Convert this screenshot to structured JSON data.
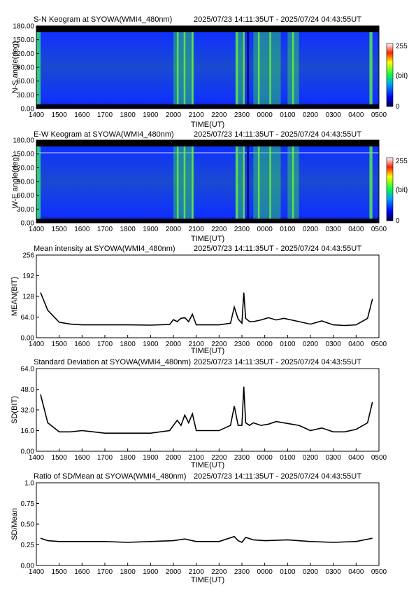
{
  "time_range": "2025/07/23 14:11:35UT - 2025/07/24 04:43:55UT",
  "time_ticks": [
    "1400",
    "1500",
    "1600",
    "1700",
    "1800",
    "1900",
    "2000",
    "2100",
    "2200",
    "2300",
    "0000",
    "0100",
    "0200",
    "0300",
    "0400",
    "0500"
  ],
  "xlabel": "TIME(UT)",
  "colorbar": {
    "max_label": "255",
    "mid_label": "(bit)",
    "min_label": "0"
  },
  "chart_data": [
    {
      "type": "heatmap",
      "title": "S-N Keogram at SYOWA(WMI4_480nm)",
      "ylabel": "N-S angle(deg)",
      "ylim": [
        0,
        180
      ],
      "yticks": [
        "0.00",
        "30.00",
        "60.00",
        "90.00",
        "120.00",
        "150.00",
        "180.00"
      ],
      "bright_bands_ut": [
        [
          20.0,
          20.9
        ],
        [
          22.7,
          23.1
        ],
        [
          23.5,
          24.7
        ],
        [
          1.0,
          1.5
        ]
      ],
      "value_range": [
        0,
        255
      ]
    },
    {
      "type": "heatmap",
      "title": "E-W Keogram at SYOWA(WMI4_480nm)",
      "ylabel": "W-E angle(deg)",
      "ylim": [
        0,
        180
      ],
      "yticks": [
        "0.00",
        "30.00",
        "60.00",
        "90.00",
        "120.00",
        "150.00",
        "180.00"
      ],
      "bright_bands_ut": [
        [
          20.0,
          20.9
        ],
        [
          22.7,
          23.1
        ],
        [
          23.5,
          24.7
        ],
        [
          1.0,
          1.5
        ]
      ],
      "value_range": [
        0,
        255
      ]
    },
    {
      "type": "line",
      "title": "Mean intensity at SYOWA(WMI4_480nm)",
      "ylabel": "MEAN(BIT)",
      "ylim": [
        0,
        256
      ],
      "yticks": [
        "0.00",
        "64.0",
        "128",
        "192",
        "256"
      ],
      "x": [
        "1411",
        "1430",
        "1500",
        "1530",
        "1600",
        "1700",
        "1800",
        "1900",
        "1950",
        "2000",
        "2010",
        "2020",
        "2030",
        "2040",
        "2050",
        "2100",
        "2130",
        "2200",
        "2230",
        "2240",
        "2250",
        "2300",
        "2305",
        "2310",
        "2320",
        "2330",
        "2350",
        "0010",
        "0030",
        "0050",
        "0110",
        "0130",
        "0200",
        "0230",
        "0300",
        "0330",
        "0400",
        "0430",
        "0443"
      ],
      "values": [
        140,
        85,
        48,
        42,
        40,
        40,
        40,
        39,
        41,
        56,
        50,
        60,
        62,
        50,
        73,
        40,
        40,
        40,
        45,
        95,
        58,
        45,
        140,
        60,
        50,
        50,
        55,
        62,
        55,
        60,
        55,
        50,
        42,
        52,
        40,
        38,
        40,
        60,
        120
      ]
    },
    {
      "type": "line",
      "title": "Standard Deviation at SYOWA(WMI4_480nm)",
      "ylabel": "SD(BIT)",
      "ylim": [
        0,
        64
      ],
      "yticks": [
        "0.00",
        "16.0",
        "32.0",
        "48.0",
        "64.0"
      ],
      "x": [
        "1411",
        "1430",
        "1500",
        "1530",
        "1600",
        "1700",
        "1800",
        "1900",
        "1950",
        "2000",
        "2010",
        "2020",
        "2030",
        "2040",
        "2050",
        "2100",
        "2130",
        "2200",
        "2230",
        "2240",
        "2250",
        "2300",
        "2305",
        "2310",
        "2320",
        "2330",
        "2350",
        "0010",
        "0030",
        "0050",
        "0110",
        "0130",
        "0200",
        "0230",
        "0300",
        "0330",
        "0400",
        "0430",
        "0443"
      ],
      "values": [
        44,
        22,
        15,
        15,
        16,
        14,
        14,
        14,
        16,
        20,
        24,
        20,
        28,
        22,
        29,
        16,
        16,
        16,
        20,
        35,
        20,
        20,
        50,
        22,
        20,
        22,
        20,
        21,
        23,
        22,
        21,
        20,
        16,
        18,
        15,
        15,
        17,
        22,
        38
      ]
    },
    {
      "type": "line",
      "title": "Ratio of SD/Mean at SYOWA(WMI4_480nm)",
      "ylabel": "SD/Mean",
      "ylim": [
        0,
        1
      ],
      "yticks": [
        "0.00",
        "0.25",
        "0.50",
        "0.75",
        "1.0"
      ],
      "x": [
        "1411",
        "1430",
        "1500",
        "1600",
        "1700",
        "1800",
        "1900",
        "2000",
        "2030",
        "2100",
        "2200",
        "2240",
        "2250",
        "2300",
        "2310",
        "2330",
        "0000",
        "0100",
        "0200",
        "0300",
        "0400",
        "0443"
      ],
      "values": [
        0.33,
        0.3,
        0.29,
        0.29,
        0.29,
        0.28,
        0.29,
        0.3,
        0.32,
        0.29,
        0.29,
        0.35,
        0.3,
        0.28,
        0.34,
        0.31,
        0.3,
        0.31,
        0.29,
        0.28,
        0.29,
        0.33
      ]
    }
  ]
}
